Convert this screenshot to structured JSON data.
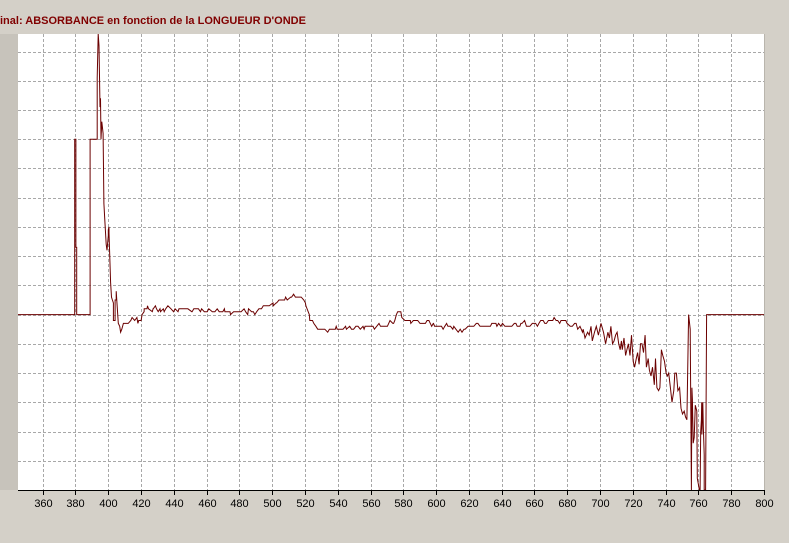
{
  "window": {
    "title": "inal: ABSORBANCE en fonction de la LONGUEUR D'ONDE"
  },
  "chart_data": {
    "type": "line",
    "title": "inal: ABSORBANCE en fonction de la LONGUEUR D'ONDE",
    "xlabel": "",
    "ylabel": "",
    "xlim": [
      345,
      800
    ],
    "ylim": [
      0,
      15.6
    ],
    "xticks": [
      360,
      380,
      400,
      420,
      440,
      460,
      480,
      500,
      520,
      540,
      560,
      580,
      600,
      620,
      640,
      660,
      680,
      700,
      720,
      740,
      760,
      780,
      800
    ],
    "y_gridlines": [
      1,
      2,
      3,
      4,
      5,
      6,
      7,
      8,
      9,
      10,
      11,
      12,
      13,
      14,
      15
    ],
    "grid": true,
    "line_color": "#6b0000",
    "grid_color": "#a8a8a8",
    "series": [
      {
        "x": [
          345,
          379.6,
          379.6,
          380.3,
          380.3,
          380.8,
          380.8,
          381.3,
          381.3,
          389,
          389,
          390.2,
          390.2,
          393.3,
          393.3,
          393.9,
          394.4,
          395,
          395.3,
          395.6,
          396.1,
          396.9,
          397.4,
          397.9,
          398.8,
          399.3,
          400.1,
          400.1,
          400.5,
          400.5,
          401.5,
          401.5,
          402,
          402,
          402.6,
          402.6,
          403.2,
          403.2,
          404.2,
          404.2,
          404.9,
          404.9,
          406.2,
          407,
          407.6,
          408.3,
          408.3,
          409.3,
          412.2,
          413.8,
          414.6,
          416.2,
          417.5,
          418.1,
          418.6,
          418.7,
          420.1,
          420.7,
          421.9,
          422,
          422.6,
          423.7,
          424,
          424.6,
          426.9,
          427.4,
          427.5,
          428.8,
          429.5,
          430.5,
          431.6,
          431.9,
          433.6,
          434.2,
          435.1,
          436.4,
          438.3,
          439.9,
          440.8,
          442.6,
          443.2,
          444,
          444.8,
          445.7,
          447.5,
          448.6,
          451,
          451.2,
          452.2,
          452.7,
          453.3,
          455,
          456.3,
          457,
          458.6,
          459.1,
          460.4,
          461.4,
          463.5,
          465.1,
          466.5,
          467.7,
          468.7,
          469.9,
          470.9,
          471.2,
          473.1,
          474.3,
          474.6,
          476.5,
          478.4,
          480.1,
          481.1,
          482.9,
          483.8,
          485.1,
          485.6,
          487.5,
          488.6,
          489.4,
          490.6,
          491.9,
          493.5,
          494.6,
          496.6,
          497.1,
          498.3,
          500.5,
          500.7,
          502.5,
          502.7,
          504.2,
          505.6,
          506.4,
          507.6,
          508.2,
          509.2,
          511.3,
          511.9,
          513.1,
          514.2,
          515,
          517.1,
          517.7,
          519.3,
          520.3,
          520.6,
          522.7,
          523,
          524.6,
          525.4,
          526.7,
          527.8,
          529.4,
          530.3,
          532.1,
          533.9,
          534.9,
          536.1,
          537.4,
          538.5,
          539.1,
          539.7,
          541.2,
          542.9,
          543.2,
          544.8,
          545.3,
          547.3,
          548.4,
          549.7,
          551.1,
          552.4,
          553.8,
          555.4,
          556.1,
          556.7,
          558.2,
          559.2,
          560,
          561.5,
          562.4,
          563.8,
          565.2,
          566.1,
          566.5,
          568.4,
          569.9,
          570.3,
          571.9,
          573.6,
          574.1,
          574.8,
          575.8,
          576.6,
          578.5,
          579.1,
          581,
          582,
          583.4,
          584.3,
          584.6,
          586.1,
          587.5,
          588.8,
          590.2,
          590.9,
          592.5,
          593.5,
          594.5,
          595.6,
          597.3,
          598.3,
          598.4,
          599.1,
          601.1,
          602.1,
          603.3,
          604.3,
          605.3,
          606.4,
          607.2,
          608.8,
          610.2,
          610.8,
          612.1,
          613.5,
          614.7,
          615.8,
          617,
          617.7,
          619.5,
          619.5,
          621.8,
          622.3,
          623,
          624.5,
          625.5,
          626.8,
          628.6,
          629.2,
          630.7,
          631.5,
          633.1,
          634,
          634.7,
          636.5,
          637.1,
          638.1,
          639.5,
          640.5,
          642,
          642.8,
          644.4,
          645.4,
          646.2,
          647.7,
          648.7,
          649.5,
          651.1,
          651.7,
          652.4,
          654,
          655.1,
          656.5,
          657.2,
          658.7,
          659.5,
          660.7,
          661.8,
          662.7,
          663.8,
          665.3,
          666.3,
          667.3,
          668.5,
          669.3,
          671.2,
          672,
          673.2,
          674.2,
          675.4,
          676.2,
          677.7,
          679.1,
          679.9,
          681.8,
          683.1,
          684.5,
          685.4,
          686.4,
          687.8,
          689.3,
          689.7,
          690.8,
          692.4,
          693.4,
          694.5,
          695.3,
          696.6,
          697.7,
          699,
          700.6,
          702.1,
          703.4,
          704.8,
          705.7,
          706.6,
          707.6,
          708.6,
          709.5,
          710.4,
          711.4,
          712.3,
          713,
          713.6,
          714.6,
          715.6,
          716.4,
          717.3,
          718.3,
          719.2,
          720.2,
          721.1,
          722.1,
          722.9,
          723.8,
          724.7,
          725.6,
          726.5,
          727.5,
          728.3,
          729.4,
          730.1,
          731.1,
          732,
          733.1,
          733.8,
          734.7,
          735.7,
          736.5,
          737.4,
          738.3,
          739.3,
          740.3,
          741.1,
          741.9,
          742.9,
          743.9,
          745,
          745.6,
          746.6,
          747.5,
          748.5,
          749.4,
          750.3,
          751.3,
          752.1,
          753,
          754,
          755,
          755.7,
          756,
          756.3,
          756.8,
          757.4,
          758.1,
          759,
          759.3,
          760.6,
          761,
          761.4,
          761.8,
          762,
          762.1,
          762.7,
          763,
          763.5,
          763.5,
          764.4,
          765,
          765,
          800
        ],
        "values": [
          6,
          6,
          12,
          12,
          8.3,
          8.3,
          6,
          6,
          6,
          6,
          12,
          12,
          12,
          12,
          14.1,
          15.6,
          15.2,
          13.1,
          13.4,
          12,
          12.6,
          12.2,
          9.8,
          9.3,
          8.4,
          8.2,
          8.7,
          8.9,
          9,
          8.8,
          7.1,
          7.1,
          6.6,
          6.6,
          6.5,
          6.5,
          6.4,
          5.8,
          5.8,
          6.5,
          6.5,
          6.8,
          5.7,
          5.6,
          5.4,
          5.5,
          5.5,
          5.7,
          5.7,
          5.8,
          5.9,
          5.8,
          5.9,
          5.7,
          5.8,
          5.8,
          5.8,
          6,
          6.1,
          6.2,
          6.2,
          6.2,
          6.3,
          6.2,
          6.1,
          6.2,
          6.2,
          6.3,
          6.2,
          6.1,
          6.2,
          6.1,
          6.2,
          6.1,
          6.2,
          6.3,
          6.2,
          6.1,
          6.2,
          6.1,
          6.2,
          6.2,
          6.2,
          6.2,
          6.2,
          6.2,
          6.1,
          6.1,
          6.2,
          6.2,
          6.2,
          6.2,
          6.1,
          6.2,
          6.1,
          6.1,
          6.1,
          6.2,
          6.1,
          6.1,
          6.2,
          6.1,
          6.1,
          6.1,
          6.2,
          6.1,
          6.1,
          6.1,
          6,
          6.1,
          6.1,
          6.1,
          6.1,
          6.2,
          6.1,
          6,
          6.2,
          6.1,
          6.1,
          6,
          6.1,
          6.2,
          6.2,
          6.3,
          6.3,
          6.3,
          6.3,
          6.4,
          6.3,
          6.4,
          6.4,
          6.5,
          6.5,
          6.5,
          6.5,
          6.6,
          6.5,
          6.6,
          6.6,
          6.7,
          6.6,
          6.6,
          6.6,
          6.6,
          6.5,
          6.4,
          6.3,
          6,
          5.8,
          5.8,
          5.7,
          5.6,
          5.5,
          5.5,
          5.5,
          5.5,
          5.4,
          5.5,
          5.5,
          5.5,
          5.5,
          5.6,
          5.5,
          5.5,
          5.5,
          5.5,
          5.6,
          5.5,
          5.6,
          5.5,
          5.5,
          5.6,
          5.6,
          5.5,
          5.6,
          5.5,
          5.6,
          5.6,
          5.6,
          5.6,
          5.6,
          5.5,
          5.6,
          5.7,
          5.6,
          5.6,
          5.6,
          5.6,
          5.6,
          5.8,
          5.7,
          5.7,
          5.8,
          6,
          6.1,
          6.1,
          5.9,
          5.8,
          5.8,
          5.8,
          5.8,
          5.7,
          5.8,
          5.8,
          5.8,
          5.7,
          5.7,
          5.7,
          5.7,
          5.8,
          5.8,
          5.6,
          5.7,
          5.7,
          5.6,
          5.6,
          5.6,
          5.6,
          5.5,
          5.6,
          5.7,
          5.6,
          5.6,
          5.5,
          5.6,
          5.5,
          5.4,
          5.5,
          5.4,
          5.5,
          5.5,
          5.6,
          5.6,
          5.6,
          5.6,
          5.6,
          5.7,
          5.7,
          5.6,
          5.6,
          5.6,
          5.6,
          5.6,
          5.6,
          5.7,
          5.7,
          5.7,
          5.6,
          5.7,
          5.6,
          5.7,
          5.6,
          5.6,
          5.6,
          5.6,
          5.6,
          5.7,
          5.7,
          5.6,
          5.6,
          5.7,
          5.7,
          5.8,
          5.6,
          5.6,
          5.6,
          5.7,
          5.7,
          5.7,
          5.6,
          5.7,
          5.8,
          5.8,
          5.7,
          5.7,
          5.8,
          5.8,
          5.8,
          5.9,
          5.8,
          5.8,
          5.7,
          5.8,
          5.8,
          5.8,
          5.7,
          5.6,
          5.6,
          5.7,
          5.7,
          5.5,
          5.6,
          5.4,
          5.5,
          5.2,
          5.4,
          5.3,
          5.6,
          5.1,
          5.4,
          5.6,
          5.3,
          5.7,
          5.4,
          5,
          5.4,
          5.2,
          5.6,
          5,
          5.1,
          5.3,
          5.4,
          5,
          4.8,
          5.1,
          4.8,
          5.2,
          4.6,
          4.8,
          5,
          4.6,
          5.3,
          4.4,
          4.2,
          4.5,
          4.7,
          4.3,
          5,
          5,
          4.7,
          5.3,
          4.2,
          4.5,
          4.1,
          3.9,
          4.2,
          3.6,
          4.5,
          3.5,
          3.4,
          3.5,
          4.8,
          4.6,
          4.4,
          4,
          3.9,
          4,
          3.5,
          3,
          3.4,
          4,
          4,
          3.4,
          3.5,
          2.8,
          2.6,
          2.7,
          2.5,
          2.4,
          6,
          5.5,
          0,
          3.5,
          3.1,
          1.6,
          1.8,
          2.9,
          2.7,
          0.4,
          0,
          0,
          2,
          2.4,
          3,
          1.9,
          3,
          2.2,
          1.2,
          0,
          0,
          6,
          6,
          6
        ]
      }
    ]
  }
}
